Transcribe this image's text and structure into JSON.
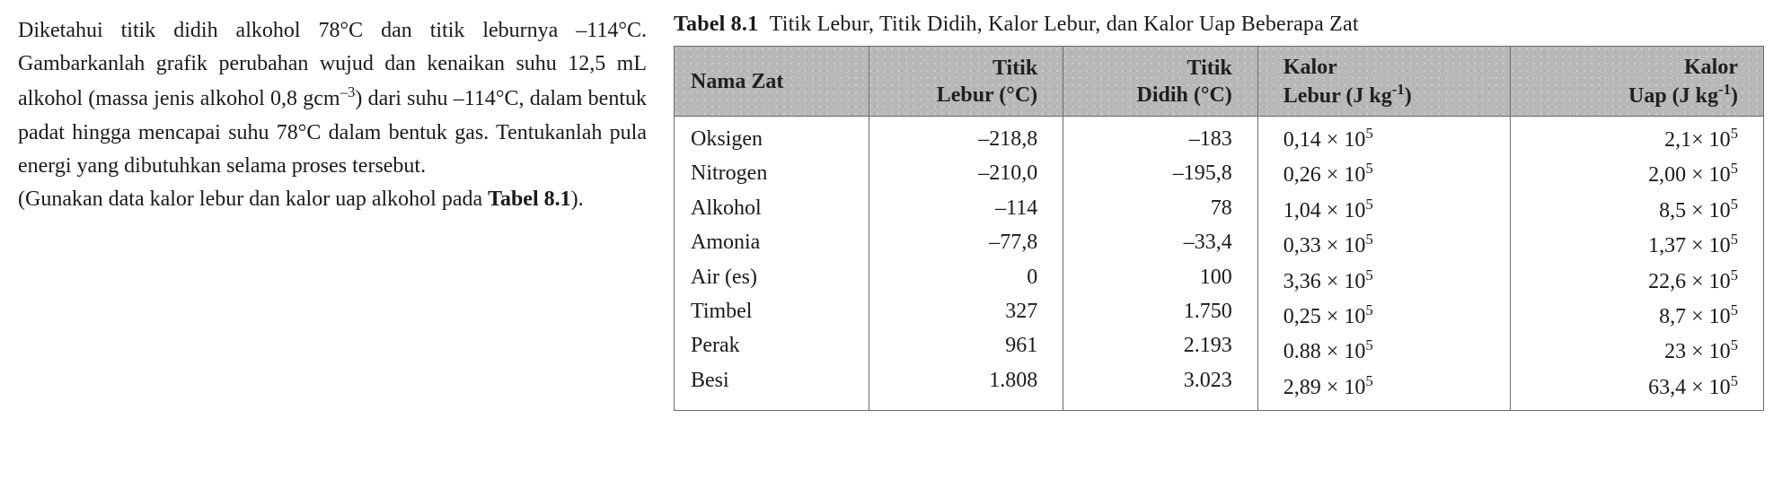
{
  "problem": {
    "text_html": "Diketahui titik didih alkohol 78°C dan titik leburnya –114°C. Gambarkanlah grafik perubahan wujud dan kenaikan suhu 12,5 mL alkohol (massa jenis alkohol 0,8 gcm<sup>–3</sup>) dari suhu –114°C, dalam bentuk padat hingga mencapai suhu 78°C dalam bentuk gas. Tentukanlah pula energi yang dibutuhkan selama proses tersebut.<br>(Gunakan data kalor lebur dan kalor uap alkohol pada <strong>Tabel 8.1</strong>)."
  },
  "table": {
    "caption_html": "<strong>Tabel 8.1</strong>&nbsp;&nbsp;Titik Lebur, Titik Didih, Kalor Lebur, dan Kalor Uap Beberapa Zat",
    "columns": [
      {
        "label_html": "Nama Zat",
        "class": "col-name"
      },
      {
        "label_html": "Titik<br>Lebur (°C)",
        "class": "col-mp"
      },
      {
        "label_html": "Titik<br>Didih (°C)",
        "class": "col-bp"
      },
      {
        "label_html": "Kalor<br>Lebur (J kg<sup>-1</sup>)",
        "class": "col-lf"
      },
      {
        "label_html": "Kalor<br>Uap (J kg<sup>-1</sup>)",
        "class": "col-lv"
      }
    ],
    "rows": [
      {
        "name": "Oksigen",
        "mp": "–218,8",
        "bp": "–183",
        "lf_html": "0,14 × 10<sup>5</sup>",
        "lv_html": "2,1× 10<sup>5</sup>"
      },
      {
        "name": "Nitrogen",
        "mp": "–210,0",
        "bp": "–195,8",
        "lf_html": "0,26 × 10<sup>5</sup>",
        "lv_html": "2,00 × 10<sup>5</sup>"
      },
      {
        "name": "Alkohol",
        "mp": "–114",
        "bp": "78",
        "lf_html": "1,04 × 10<sup>5</sup>",
        "lv_html": "8,5 × 10<sup>5</sup>"
      },
      {
        "name": "Amonia",
        "mp": "–77,8",
        "bp": "–33,4",
        "lf_html": "0,33 × 10<sup>5</sup>",
        "lv_html": "1,37 × 10<sup>5</sup>"
      },
      {
        "name": "Air (es)",
        "mp": "0",
        "bp": "100",
        "lf_html": "3,36 × 10<sup>5</sup>",
        "lv_html": "22,6 × 10<sup>5</sup>"
      },
      {
        "name": "Timbel",
        "mp": "327",
        "bp": "1.750",
        "lf_html": "0,25 × 10<sup>5</sup>",
        "lv_html": "8,7 × 10<sup>5</sup>"
      },
      {
        "name": "Perak",
        "mp": "961",
        "bp": "2.193",
        "lf_html": "0.88 × 10<sup>5</sup>",
        "lv_html": "23 × 10<sup>5</sup>"
      },
      {
        "name": "Besi",
        "mp": "1.808",
        "bp": "3.023",
        "lf_html": "2,89 × 10<sup>5</sup>",
        "lv_html": "63,4 × 10<sup>5</sup>"
      }
    ]
  }
}
